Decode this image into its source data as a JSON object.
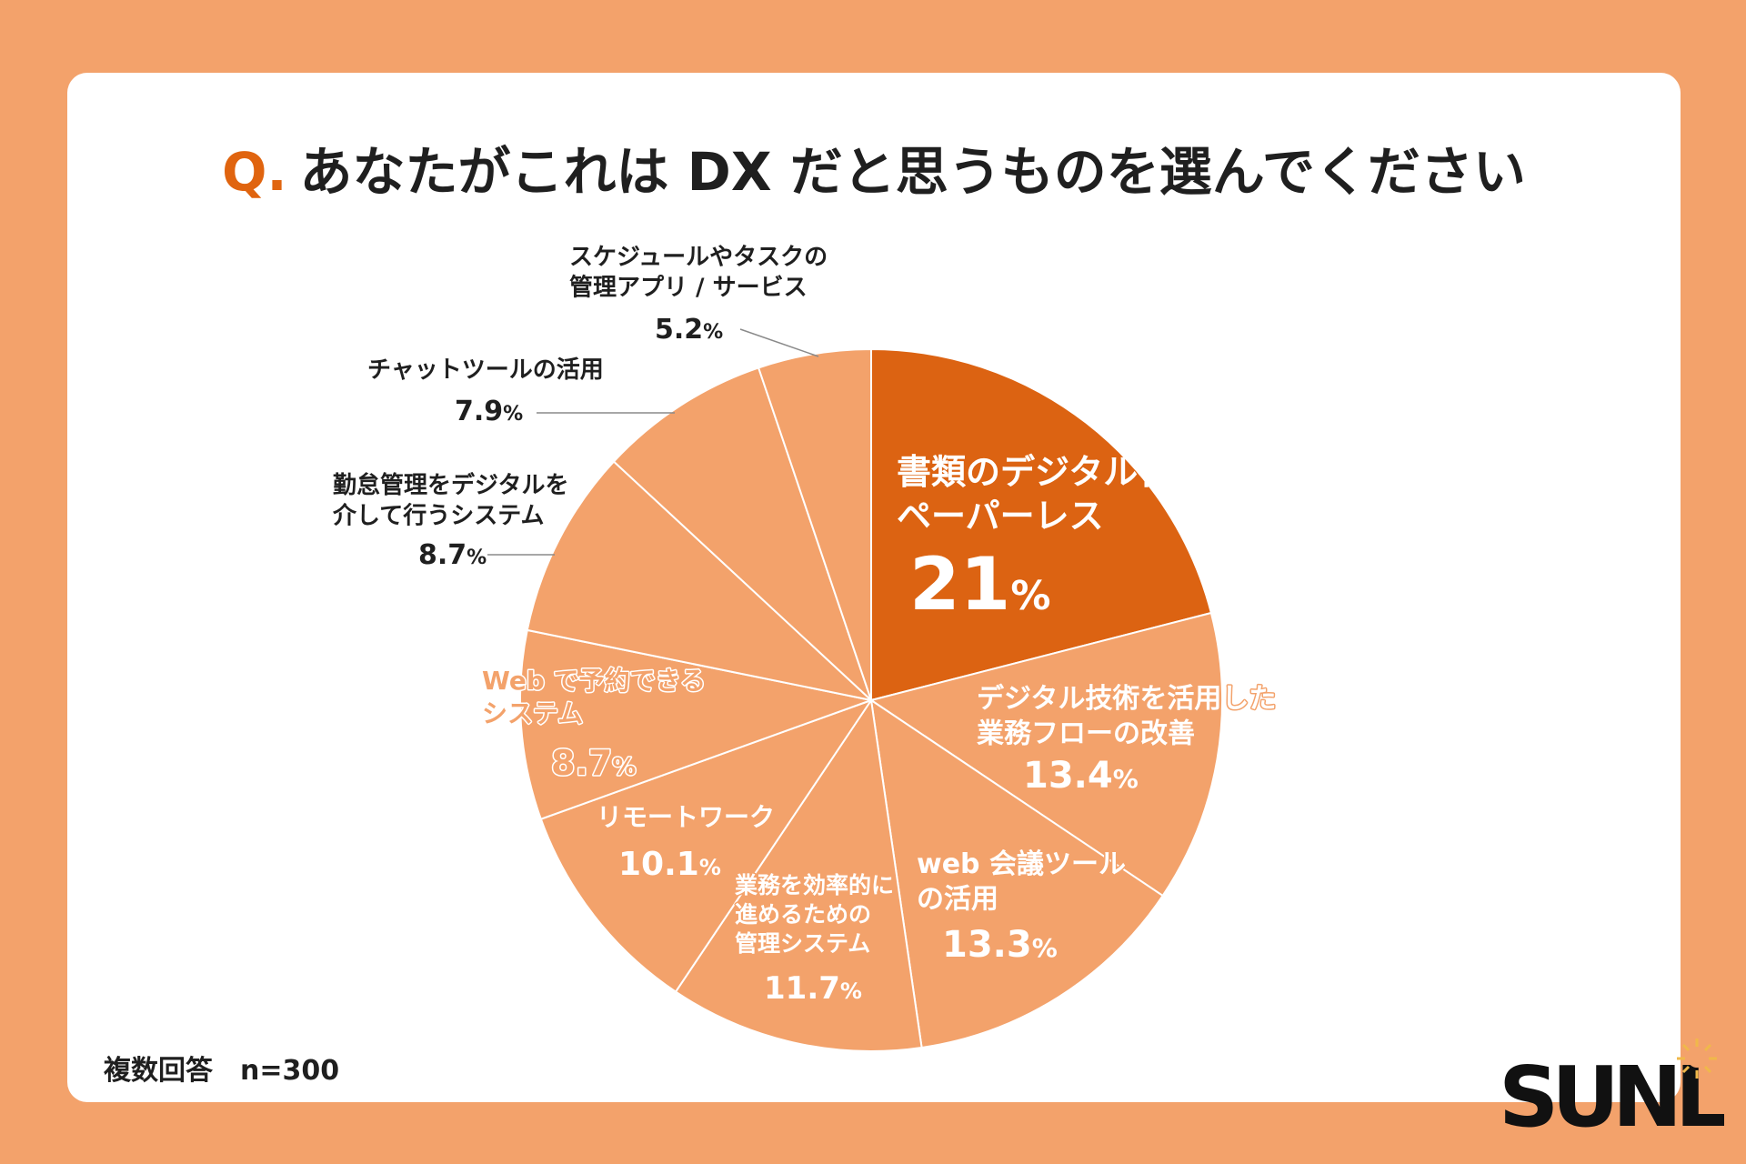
{
  "title": {
    "prefix": "Q.",
    "text": "あなたがこれは DX だと思うものを選んでください"
  },
  "footnote": "複数回答　n=300",
  "brand": {
    "name": "SUNL"
  },
  "colors": {
    "background": "#F3A26B",
    "card": "#FFFFFF",
    "accent": "#E0640F",
    "slice": "#F3A26B",
    "slice_highlight": "#DC6312",
    "text_dark": "#1F1F1F",
    "label_light": "#FFFFFF",
    "label_orange_on_light": "#F3A26B"
  },
  "chart_data": {
    "type": "pie",
    "title": "あなたがこれは DX だと思うものを選んでください",
    "unit": "%",
    "start": "12 o'clock, clockwise",
    "slices": [
      {
        "name": "書類のデジタル化によるペーパーレス",
        "lines": [
          "書類のデジタル化による",
          "ペーパーレス"
        ],
        "value": 21,
        "display": "21",
        "highlight": true
      },
      {
        "name": "デジタル技術を活用した業務フローの改善",
        "lines": [
          "デジタル技術を活用した",
          "業務フローの改善"
        ],
        "value": 13.4,
        "display": "13.4"
      },
      {
        "name": "web 会議ツールの活用",
        "lines": [
          "web 会議ツール",
          "の活用"
        ],
        "value": 13.3,
        "display": "13.3"
      },
      {
        "name": "業務を効率的に進めるための管理システム",
        "lines": [
          "業務を効率的に",
          "進めるための",
          "管理システム"
        ],
        "value": 11.7,
        "display": "11.7"
      },
      {
        "name": "リモートワーク",
        "lines": [
          "リモートワーク"
        ],
        "value": 10.1,
        "display": "10.1"
      },
      {
        "name": "Web で予約できるシステム",
        "lines": [
          "Web で予約できる",
          "システム"
        ],
        "value": 8.7,
        "display": "8.7"
      },
      {
        "name": "勤怠管理をデジタルを介して行うシステム",
        "lines": [
          "勤怠管理をデジタルを",
          "介して行うシステム"
        ],
        "value": 8.7,
        "display": "8.7",
        "outside": true
      },
      {
        "name": "チャットツールの活用",
        "lines": [
          "チャットツールの活用"
        ],
        "value": 7.9,
        "display": "7.9",
        "outside": true
      },
      {
        "name": "スケジュールやタスクの管理アプリ / サービス",
        "lines": [
          "スケジュールやタスクの",
          "管理アプリ / サービス"
        ],
        "value": 5.2,
        "display": "5.2",
        "outside": true
      }
    ]
  }
}
